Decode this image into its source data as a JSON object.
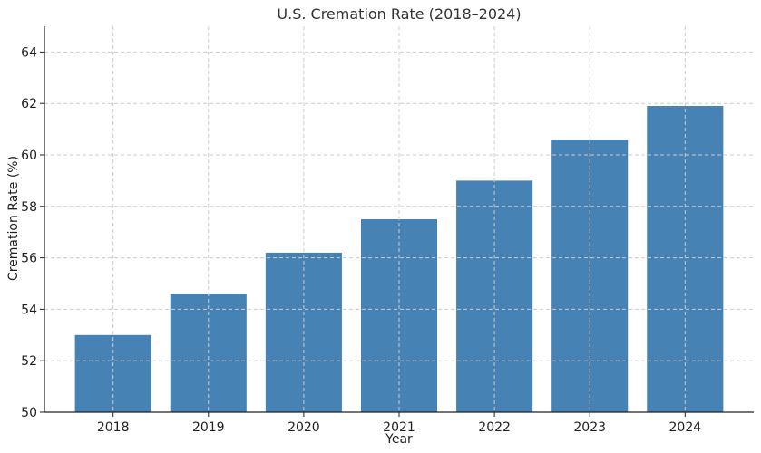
{
  "chart_data": {
    "type": "bar",
    "title": "U.S. Cremation Rate (2018–2024)",
    "xlabel": "Year",
    "ylabel": "Cremation Rate (%)",
    "categories": [
      "2018",
      "2019",
      "2020",
      "2021",
      "2022",
      "2023",
      "2024"
    ],
    "values": [
      53.0,
      54.6,
      56.2,
      57.5,
      59.0,
      60.6,
      61.9
    ],
    "ylim": [
      50,
      65
    ],
    "yticks": [
      50,
      52,
      54,
      56,
      58,
      60,
      62,
      64
    ],
    "grid": true,
    "bar_color": "#4682b4",
    "grid_color": "#cccccc"
  }
}
